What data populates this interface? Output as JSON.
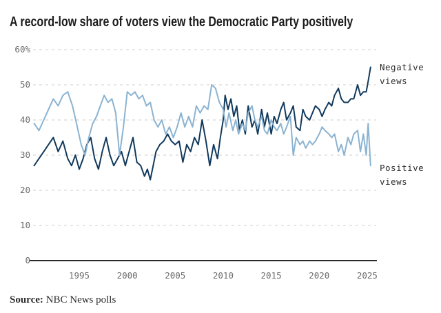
{
  "header": {
    "title": "A record-low share of voters view the Democratic Party positively"
  },
  "footer": {
    "source_label": "Source:",
    "source_text": " NBC News polls"
  },
  "colors": {
    "negative_line": "#11395c",
    "positive_line": "#8ab3d2",
    "gridline": "#cccccc",
    "axis_line": "#2b2b2b",
    "tick_text": "#6b6b6b"
  },
  "chart_data": {
    "type": "line",
    "title": "A record-low share of voters view the Democratic Party positively",
    "xlabel": "",
    "ylabel": "",
    "ylim": [
      0,
      60
    ],
    "xlim": [
      1990,
      2026
    ],
    "grid": "horizontal dashed",
    "legend_position": "right-of-line-ends",
    "y_ticks": [
      {
        "value": 60,
        "label": "60%"
      },
      {
        "value": 50,
        "label": "50"
      },
      {
        "value": 40,
        "label": "40"
      },
      {
        "value": 30,
        "label": "30"
      },
      {
        "value": 20,
        "label": "20"
      },
      {
        "value": 10,
        "label": "10"
      },
      {
        "value": 0,
        "label": "0"
      }
    ],
    "x_ticks": [
      {
        "value": 1995,
        "label": "1995"
      },
      {
        "value": 2000,
        "label": "2000"
      },
      {
        "value": 2005,
        "label": "2005"
      },
      {
        "value": 2010,
        "label": "2010"
      },
      {
        "value": 2015,
        "label": "2015"
      },
      {
        "value": 2020,
        "label": "2020"
      },
      {
        "value": 2025,
        "label": "2025"
      }
    ],
    "annotations": {
      "negative": {
        "line1": "Negative",
        "line2": "views"
      },
      "positive": {
        "line1": "Positive",
        "line2": "views"
      }
    },
    "series": [
      {
        "name": "Negative views",
        "color": "#11395c",
        "points": [
          [
            1990.3,
            27
          ],
          [
            1990.8,
            29
          ],
          [
            1991.3,
            31
          ],
          [
            1991.8,
            33
          ],
          [
            1992.3,
            35
          ],
          [
            1992.8,
            31
          ],
          [
            1993.3,
            34
          ],
          [
            1993.8,
            29
          ],
          [
            1994.2,
            27
          ],
          [
            1994.6,
            30
          ],
          [
            1995.0,
            26
          ],
          [
            1995.4,
            29
          ],
          [
            1995.8,
            33
          ],
          [
            1996.2,
            35
          ],
          [
            1996.6,
            29
          ],
          [
            1997.0,
            26
          ],
          [
            1997.4,
            31
          ],
          [
            1997.8,
            35
          ],
          [
            1998.2,
            30
          ],
          [
            1998.6,
            27
          ],
          [
            1999.0,
            29
          ],
          [
            1999.4,
            31
          ],
          [
            1999.8,
            27
          ],
          [
            2000.2,
            31
          ],
          [
            2000.6,
            35
          ],
          [
            2001.0,
            28
          ],
          [
            2001.4,
            27
          ],
          [
            2001.8,
            24
          ],
          [
            2002.1,
            26
          ],
          [
            2002.4,
            23
          ],
          [
            2002.7,
            27
          ],
          [
            2003.0,
            31
          ],
          [
            2003.4,
            33
          ],
          [
            2003.8,
            34
          ],
          [
            2004.2,
            36
          ],
          [
            2004.6,
            34
          ],
          [
            2005.0,
            33
          ],
          [
            2005.4,
            34
          ],
          [
            2005.8,
            28
          ],
          [
            2006.2,
            33
          ],
          [
            2006.6,
            31
          ],
          [
            2007.0,
            35
          ],
          [
            2007.4,
            33
          ],
          [
            2007.8,
            40
          ],
          [
            2008.2,
            34
          ],
          [
            2008.6,
            27
          ],
          [
            2009.0,
            33
          ],
          [
            2009.4,
            29
          ],
          [
            2009.7,
            35
          ],
          [
            2010.0,
            40
          ],
          [
            2010.2,
            47
          ],
          [
            2010.5,
            43
          ],
          [
            2010.8,
            46
          ],
          [
            2011.1,
            41
          ],
          [
            2011.4,
            44
          ],
          [
            2011.7,
            37
          ],
          [
            2012.0,
            40
          ],
          [
            2012.3,
            36
          ],
          [
            2012.6,
            44
          ],
          [
            2013.0,
            38
          ],
          [
            2013.3,
            40
          ],
          [
            2013.6,
            36
          ],
          [
            2014.0,
            43
          ],
          [
            2014.3,
            38
          ],
          [
            2014.6,
            42
          ],
          [
            2015.0,
            36
          ],
          [
            2015.3,
            41
          ],
          [
            2015.6,
            39
          ],
          [
            2016.0,
            43
          ],
          [
            2016.3,
            45
          ],
          [
            2016.6,
            40
          ],
          [
            2017.0,
            42
          ],
          [
            2017.3,
            44
          ],
          [
            2017.6,
            38
          ],
          [
            2018.0,
            37
          ],
          [
            2018.3,
            43
          ],
          [
            2018.6,
            41
          ],
          [
            2019.0,
            40
          ],
          [
            2019.3,
            42
          ],
          [
            2019.6,
            44
          ],
          [
            2020.0,
            43
          ],
          [
            2020.3,
            41
          ],
          [
            2020.6,
            43
          ],
          [
            2021.0,
            45
          ],
          [
            2021.3,
            44
          ],
          [
            2021.6,
            47
          ],
          [
            2022.0,
            49
          ],
          [
            2022.3,
            46
          ],
          [
            2022.6,
            45
          ],
          [
            2023.0,
            45
          ],
          [
            2023.3,
            46
          ],
          [
            2023.6,
            46
          ],
          [
            2024.0,
            50
          ],
          [
            2024.3,
            47
          ],
          [
            2024.6,
            48
          ],
          [
            2024.9,
            48
          ],
          [
            2025.1,
            51
          ],
          [
            2025.35,
            55
          ]
        ]
      },
      {
        "name": "Positive views",
        "color": "#8ab3d2",
        "points": [
          [
            1990.3,
            39
          ],
          [
            1990.8,
            37
          ],
          [
            1991.3,
            40
          ],
          [
            1991.8,
            43
          ],
          [
            1992.3,
            46
          ],
          [
            1992.8,
            44
          ],
          [
            1993.3,
            47
          ],
          [
            1993.8,
            48
          ],
          [
            1994.3,
            44
          ],
          [
            1994.8,
            38
          ],
          [
            1995.2,
            33
          ],
          [
            1995.6,
            30
          ],
          [
            1996.0,
            35
          ],
          [
            1996.4,
            39
          ],
          [
            1996.8,
            41
          ],
          [
            1997.2,
            44
          ],
          [
            1997.6,
            47
          ],
          [
            1998.0,
            45
          ],
          [
            1998.4,
            46
          ],
          [
            1998.8,
            42
          ],
          [
            1999.2,
            30
          ],
          [
            1999.6,
            38
          ],
          [
            2000.0,
            48
          ],
          [
            2000.4,
            47
          ],
          [
            2000.8,
            48
          ],
          [
            2001.2,
            46
          ],
          [
            2001.6,
            47
          ],
          [
            2002.0,
            44
          ],
          [
            2002.4,
            45
          ],
          [
            2002.8,
            40
          ],
          [
            2003.2,
            38
          ],
          [
            2003.6,
            40
          ],
          [
            2004.0,
            36
          ],
          [
            2004.4,
            38
          ],
          [
            2004.8,
            35
          ],
          [
            2005.2,
            38
          ],
          [
            2005.6,
            42
          ],
          [
            2006.0,
            38
          ],
          [
            2006.4,
            41
          ],
          [
            2006.8,
            38
          ],
          [
            2007.2,
            44
          ],
          [
            2007.6,
            42
          ],
          [
            2008.0,
            44
          ],
          [
            2008.4,
            43
          ],
          [
            2008.8,
            50
          ],
          [
            2009.2,
            49
          ],
          [
            2009.6,
            45
          ],
          [
            2010.0,
            43
          ],
          [
            2010.3,
            38
          ],
          [
            2010.6,
            42
          ],
          [
            2011.0,
            37
          ],
          [
            2011.3,
            40
          ],
          [
            2011.6,
            36
          ],
          [
            2012.0,
            39
          ],
          [
            2012.3,
            37
          ],
          [
            2012.6,
            42
          ],
          [
            2013.0,
            44
          ],
          [
            2013.3,
            40
          ],
          [
            2013.6,
            38
          ],
          [
            2014.0,
            41
          ],
          [
            2014.3,
            37
          ],
          [
            2014.6,
            36
          ],
          [
            2015.0,
            40
          ],
          [
            2015.3,
            38
          ],
          [
            2015.6,
            37
          ],
          [
            2016.0,
            39
          ],
          [
            2016.3,
            36
          ],
          [
            2016.6,
            38
          ],
          [
            2017.0,
            41
          ],
          [
            2017.3,
            30
          ],
          [
            2017.6,
            35
          ],
          [
            2018.0,
            33
          ],
          [
            2018.3,
            34
          ],
          [
            2018.6,
            32
          ],
          [
            2019.0,
            34
          ],
          [
            2019.3,
            33
          ],
          [
            2019.6,
            34
          ],
          [
            2020.0,
            36
          ],
          [
            2020.3,
            38
          ],
          [
            2020.6,
            37
          ],
          [
            2021.0,
            36
          ],
          [
            2021.3,
            35
          ],
          [
            2021.6,
            36
          ],
          [
            2022.0,
            31
          ],
          [
            2022.3,
            33
          ],
          [
            2022.6,
            30
          ],
          [
            2023.0,
            35
          ],
          [
            2023.3,
            33
          ],
          [
            2023.6,
            36
          ],
          [
            2024.0,
            37
          ],
          [
            2024.3,
            31
          ],
          [
            2024.6,
            36
          ],
          [
            2024.9,
            30
          ],
          [
            2025.1,
            39
          ],
          [
            2025.35,
            27
          ]
        ]
      }
    ]
  }
}
